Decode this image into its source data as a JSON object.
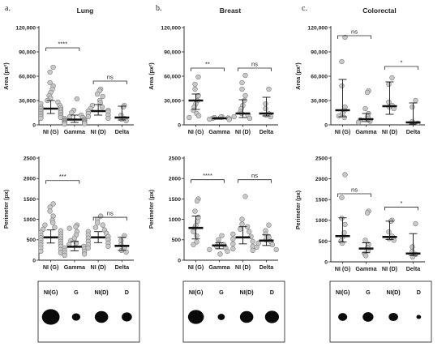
{
  "figure": {
    "panels": [
      {
        "letter": "a.",
        "title": "Lung"
      },
      {
        "letter": "b.",
        "title": "Breast"
      },
      {
        "letter": "c.",
        "title": "Colorectal"
      }
    ]
  },
  "chart_data": [
    {
      "type": "scatter",
      "panel": "a. Lung",
      "ylabel": "Area (px²)",
      "ylim": [
        0,
        120000
      ],
      "yticks": [
        0,
        30000,
        60000,
        90000,
        120000
      ],
      "ytick_labels": [
        "0",
        "30,000",
        "60,000",
        "90,000",
        "120,000"
      ],
      "categories": [
        "NI (G)",
        "Gamma",
        "NI (D)",
        "Delta"
      ],
      "series": [
        {
          "points": [
            71000,
            65000,
            52000,
            48000,
            44000,
            40000,
            36000,
            33000,
            30000,
            28000,
            26000,
            24000,
            22000,
            21000,
            20000,
            19000,
            18000,
            17000,
            16000,
            15000,
            14000,
            13000,
            12000,
            11000,
            10000,
            9000,
            8000
          ],
          "median": 20000,
          "q1": 14000,
          "q3": 30000
        },
        {
          "points": [
            32000,
            18000,
            15000,
            12000,
            10000,
            9000,
            8000,
            7000,
            6000,
            5500,
            5000,
            4500,
            4000,
            3500,
            3000,
            2500,
            2000,
            1500,
            1000
          ],
          "median": 6500,
          "q1": 3000,
          "q3": 12000
        },
        {
          "points": [
            44000,
            42000,
            38000,
            35000,
            30000,
            27000,
            24000,
            22000,
            20000,
            18000,
            17000,
            16000,
            14000,
            12000,
            10000,
            8000
          ],
          "median": 17000,
          "q1": 12000,
          "q3": 25000
        },
        {
          "points": [
            24000,
            22000,
            12000,
            8000,
            7000,
            5000
          ],
          "median": 9000,
          "q1": 6000,
          "q3": 23000
        }
      ],
      "comparisons": [
        {
          "groups": [
            0,
            1
          ],
          "label": "****",
          "y": 95000
        },
        {
          "groups": [
            2,
            3
          ],
          "label": "ns",
          "y": 54000
        }
      ]
    },
    {
      "type": "scatter",
      "panel": "a. Lung",
      "ylabel": "Perimeter (px)",
      "ylim": [
        0,
        2500
      ],
      "yticks": [
        0,
        500,
        1000,
        1500,
        2000,
        2500
      ],
      "ytick_labels": [
        "0",
        "500",
        "1000",
        "1500",
        "2000",
        "2500"
      ],
      "categories": [
        "NI (G)",
        "Gamma",
        "NI (D)",
        "Delta"
      ],
      "series": [
        {
          "points": [
            1380,
            1300,
            1200,
            1080,
            980,
            920,
            860,
            800,
            760,
            720,
            680,
            640,
            610,
            580,
            550,
            520,
            490,
            460,
            430,
            400,
            370,
            340,
            300,
            260,
            220,
            180
          ],
          "median": 560,
          "q1": 420,
          "q3": 740
        },
        {
          "points": [
            860,
            820,
            780,
            700,
            620,
            540,
            480,
            420,
            380,
            340,
            300,
            270,
            240,
            210,
            180,
            150,
            120
          ],
          "median": 330,
          "q1": 230,
          "q3": 460
        },
        {
          "points": [
            1080,
            1000,
            920,
            860,
            800,
            740,
            700,
            660,
            620,
            580,
            540,
            500,
            460,
            420,
            380,
            340,
            300
          ],
          "median": 560,
          "q1": 430,
          "q3": 700
        },
        {
          "points": [
            600,
            480,
            380,
            300,
            240,
            200
          ],
          "median": 350,
          "q1": 240,
          "q3": 560
        }
      ],
      "comparisons": [
        {
          "groups": [
            0,
            1
          ],
          "label": "***",
          "y": 1950
        },
        {
          "groups": [
            2,
            3
          ],
          "label": "ns",
          "y": 1050
        }
      ]
    },
    {
      "type": "scatter",
      "panel": "b. Breast",
      "ylabel": "Area (px²)",
      "ylim": [
        0,
        120000
      ],
      "yticks": [
        0,
        30000,
        60000,
        90000,
        120000
      ],
      "ytick_labels": [
        "0",
        "30,000",
        "60,000",
        "90,000",
        "120,000"
      ],
      "categories": [
        "NI (G)",
        "Gamma",
        "NI (D)",
        "Delta"
      ],
      "series": [
        {
          "points": [
            59000,
            50000,
            44000,
            36000,
            30000,
            26000,
            22000,
            18000,
            14000,
            11000,
            9000
          ],
          "median": 30000,
          "q1": 19000,
          "q3": 38000
        },
        {
          "points": [
            10000,
            9500,
            9000,
            8500,
            8000,
            7500,
            7000,
            6500
          ],
          "median": 8000,
          "q1": 7000,
          "q3": 9000
        },
        {
          "points": [
            61000,
            52000,
            44000,
            36000,
            30000,
            24000,
            20000,
            16000,
            14000,
            12000,
            10000,
            8000
          ],
          "median": 14000,
          "q1": 9000,
          "q3": 31000
        },
        {
          "points": [
            44000,
            26000,
            20000,
            14000,
            12000,
            10000
          ],
          "median": 14000,
          "q1": 11000,
          "q3": 34000
        }
      ],
      "comparisons": [
        {
          "groups": [
            0,
            1
          ],
          "label": "**",
          "y": 70000
        },
        {
          "groups": [
            2,
            3
          ],
          "label": "ns",
          "y": 70000
        }
      ]
    },
    {
      "type": "scatter",
      "panel": "b. Breast",
      "ylabel": "Perimeter (px)",
      "ylim": [
        0,
        2500
      ],
      "yticks": [
        0,
        500,
        1000,
        1500,
        2000,
        2500
      ],
      "ytick_labels": [
        "0",
        "500",
        "1000",
        "1500",
        "2000",
        "2500"
      ],
      "categories": [
        "NI (G)",
        "Gamma",
        "NI (D)",
        "Delta"
      ],
      "series": [
        {
          "points": [
            1500,
            1450,
            1200,
            1050,
            950,
            850,
            780,
            700,
            600,
            450,
            380
          ],
          "median": 790,
          "q1": 520,
          "q3": 1080
        },
        {
          "points": [
            600,
            500,
            420,
            380,
            340,
            300,
            260,
            220,
            150
          ],
          "median": 360,
          "q1": 280,
          "q3": 430
        },
        {
          "points": [
            1560,
            1000,
            880,
            820,
            760,
            700,
            640,
            580,
            520,
            460,
            400,
            340,
            280,
            240
          ],
          "median": 560,
          "q1": 400,
          "q3": 820
        },
        {
          "points": [
            860,
            720,
            640,
            560,
            500,
            460,
            420,
            380,
            320,
            260
          ],
          "median": 480,
          "q1": 360,
          "q3": 620
        }
      ],
      "comparisons": [
        {
          "groups": [
            0,
            1
          ],
          "label": "****",
          "y": 1970
        },
        {
          "groups": [
            2,
            3
          ],
          "label": "ns",
          "y": 1970
        }
      ]
    },
    {
      "type": "scatter",
      "panel": "c. Colorectal",
      "ylabel": "Area (px²)",
      "ylim": [
        0,
        120000
      ],
      "yticks": [
        0,
        30000,
        60000,
        90000,
        120000
      ],
      "ytick_labels": [
        "0",
        "30,000",
        "60,000",
        "90,000",
        "120,000"
      ],
      "categories": [
        "NI (G)",
        "Gamma",
        "NI (D)",
        "Delta"
      ],
      "series": [
        {
          "points": [
            108000,
            78000,
            48000,
            22000,
            18000,
            14000,
            11000,
            9000
          ],
          "median": 18000,
          "q1": 10000,
          "q3": 56000
        },
        {
          "points": [
            42000,
            40000,
            20000,
            14000,
            10000,
            8000,
            6000,
            4500,
            3000
          ],
          "median": 7000,
          "q1": 4000,
          "q3": 14000
        },
        {
          "points": [
            58000,
            50000,
            28000,
            24000,
            22000,
            20000
          ],
          "median": 23000,
          "q1": 13000,
          "q3": 53000
        },
        {
          "points": [
            30000,
            22000,
            4000,
            2000
          ],
          "median": 3000,
          "q1": 1000,
          "q3": 27000
        }
      ],
      "comparisons": [
        {
          "groups": [
            0,
            1
          ],
          "label": "ns",
          "y": 110000
        },
        {
          "groups": [
            2,
            3
          ],
          "label": "*",
          "y": 72000
        }
      ]
    },
    {
      "type": "scatter",
      "panel": "c. Colorectal",
      "ylabel": "Perimeter (px)",
      "ylim": [
        0,
        2500
      ],
      "yticks": [
        0,
        500,
        1000,
        1500,
        2000,
        2500
      ],
      "ytick_labels": [
        "0",
        "500",
        "1000",
        "1500",
        "2000",
        "2500"
      ],
      "categories": [
        "NI (G)",
        "Gamma",
        "NI (D)",
        "Delta"
      ],
      "series": [
        {
          "points": [
            2100,
            1550,
            1050,
            900,
            700,
            600,
            500,
            450
          ],
          "median": 620,
          "q1": 480,
          "q3": 1060
        },
        {
          "points": [
            1220,
            1180,
            520,
            420,
            340,
            280,
            200,
            150
          ],
          "median": 320,
          "q1": 220,
          "q3": 460
        },
        {
          "points": [
            1000,
            980,
            720,
            620,
            560,
            520
          ],
          "median": 600,
          "q1": 540,
          "q3": 980
        },
        {
          "points": [
            920,
            360,
            250,
            180,
            120
          ],
          "median": 200,
          "q1": 150,
          "q3": 680
        }
      ],
      "comparisons": [
        {
          "groups": [
            0,
            1
          ],
          "label": "ns",
          "y": 1640
        },
        {
          "groups": [
            2,
            3
          ],
          "label": "*",
          "y": 1320
        }
      ]
    }
  ],
  "blob_panels": [
    {
      "labels": [
        "NI(G)",
        "G",
        "NI(D)",
        "D"
      ],
      "sizes": [
        0.95,
        0.45,
        0.72,
        0.55
      ]
    },
    {
      "labels": [
        "NI(G)",
        "G",
        "NI(D)",
        "D"
      ],
      "sizes": [
        0.85,
        0.38,
        0.72,
        0.75
      ]
    },
    {
      "labels": [
        "NI(G)",
        "G",
        "NI(D)",
        "D"
      ],
      "sizes": [
        0.48,
        0.58,
        0.5,
        0.25
      ]
    }
  ],
  "colors": {
    "point_fill": "#c8c8c8",
    "point_stroke": "#777777",
    "median": "#111111",
    "axis": "#222222"
  }
}
